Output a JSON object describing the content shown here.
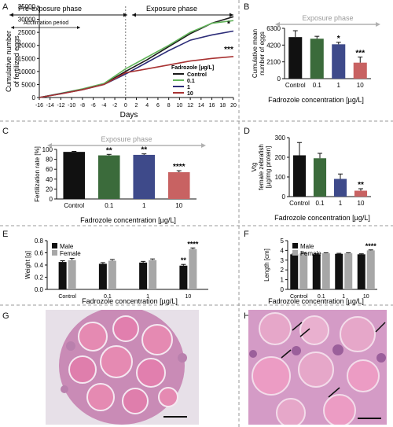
{
  "chart_data": [
    {
      "panel": "A",
      "type": "line",
      "xlabel": "Days",
      "ylabel": "Cumulative number of fertilized eggs",
      "xlim": [
        -16,
        20
      ],
      "ylim": [
        0,
        35000
      ],
      "xticks": [
        -16,
        -14,
        -12,
        -10,
        -8,
        -6,
        -4,
        -2,
        0,
        2,
        4,
        6,
        8,
        10,
        12,
        14,
        16,
        18,
        20
      ],
      "yticks": [
        0,
        5000,
        10000,
        15000,
        20000,
        25000,
        30000,
        35000
      ],
      "phases": {
        "pre": "Pre-exposure phase",
        "exposure": "Exposure phase",
        "acclimation": "Acclimation period"
      },
      "legend_title": "Fadrozole [µg/L]",
      "series": [
        {
          "name": "Control",
          "color": "#1a1a1a",
          "x": [
            -16,
            -12,
            -8,
            -4,
            0,
            4,
            8,
            12,
            16,
            20
          ],
          "y": [
            0,
            1500,
            3200,
            5200,
            10000,
            14500,
            19500,
            24500,
            28500,
            31000
          ]
        },
        {
          "name": "0.1",
          "color": "#62b45a",
          "x": [
            -16,
            -12,
            -8,
            -4,
            0,
            4,
            8,
            12,
            16,
            20
          ],
          "y": [
            0,
            1600,
            3300,
            5400,
            11000,
            15500,
            20000,
            25000,
            28500,
            29500
          ]
        },
        {
          "name": "1",
          "color": "#2c2c78",
          "x": [
            -16,
            -12,
            -8,
            -4,
            0,
            4,
            8,
            12,
            16,
            20
          ],
          "y": [
            0,
            1500,
            3000,
            5000,
            9000,
            13500,
            18000,
            22000,
            24000,
            25500
          ]
        },
        {
          "name": "10",
          "color": "#a83232",
          "x": [
            -16,
            -12,
            -8,
            -4,
            0,
            4,
            8,
            12,
            16,
            20
          ],
          "y": [
            0,
            1400,
            3000,
            5000,
            9500,
            11000,
            12500,
            14000,
            15000,
            15700
          ]
        }
      ],
      "annotations": [
        {
          "text": "*",
          "series": "1"
        },
        {
          "text": "***",
          "series": "10"
        }
      ]
    },
    {
      "panel": "B",
      "type": "bar",
      "subtitle": "Exposure phase",
      "xlabel": "Fadrozole concentration [µg/L]",
      "ylabel": "Cumulative mean number of eggs",
      "categories": [
        "Control",
        "0.1",
        "1",
        "10"
      ],
      "values": [
        5200,
        5000,
        4300,
        2000
      ],
      "errors": [
        800,
        300,
        250,
        700
      ],
      "sig": [
        "",
        "",
        "*",
        "***"
      ],
      "ylim": [
        0,
        6300
      ],
      "yticks": [
        0,
        2100,
        4200,
        6300
      ],
      "colors": [
        "#111111",
        "#3b6b3b",
        "#3e4a8a",
        "#c86262"
      ]
    },
    {
      "panel": "C",
      "type": "bar",
      "subtitle": "Exposure phase",
      "xlabel": "Fadrozole concentration [µg/L]",
      "ylabel": "Fertilization rate [%]",
      "categories": [
        "Control",
        "0.1",
        "1",
        "10"
      ],
      "values": [
        95,
        88,
        89,
        54
      ],
      "errors": [
        1,
        2,
        2,
        3
      ],
      "sig": [
        "",
        "**",
        "**",
        "****"
      ],
      "ylim": [
        0,
        100
      ],
      "yticks": [
        0,
        20,
        40,
        60,
        80,
        100
      ],
      "colors": [
        "#111111",
        "#3b6b3b",
        "#3e4a8a",
        "#c86262"
      ]
    },
    {
      "panel": "D",
      "type": "bar",
      "xlabel": "Fadrozole concentration [µg/L]",
      "ylabel": "Vtg female zebrafish [µg/mg protein]",
      "categories": [
        "Control",
        "0.1",
        "1",
        "10"
      ],
      "values": [
        210,
        195,
        90,
        30
      ],
      "errors": [
        65,
        25,
        25,
        10
      ],
      "sig": [
        "",
        "",
        "",
        "**"
      ],
      "ylim": [
        0,
        300
      ],
      "yticks": [
        0,
        100,
        200,
        300
      ],
      "colors": [
        "#111111",
        "#3b6b3b",
        "#3e4a8a",
        "#c86262"
      ]
    },
    {
      "panel": "E",
      "type": "bar",
      "xlabel": "Fadrozole concentration [µg/L]",
      "ylabel": "Weight [g]",
      "categories": [
        "Control",
        "0.1",
        "1",
        "10"
      ],
      "series": [
        {
          "name": "Male",
          "color": "#111111",
          "values": [
            0.45,
            0.42,
            0.44,
            0.39
          ],
          "errors": [
            0.02,
            0.02,
            0.02,
            0.02
          ],
          "sig": [
            "",
            "",
            "",
            "**"
          ]
        },
        {
          "name": "Female",
          "color": "#a7a7a7",
          "values": [
            0.48,
            0.47,
            0.48,
            0.66
          ],
          "errors": [
            0.03,
            0.02,
            0.02,
            0.02
          ],
          "sig": [
            "",
            "",
            "",
            "****"
          ]
        }
      ],
      "ylim": [
        0,
        0.8
      ],
      "yticks": [
        0.0,
        0.2,
        0.4,
        0.6,
        0.8
      ]
    },
    {
      "panel": "F",
      "type": "bar",
      "xlabel": "Fadrozole concentration [µg/L]",
      "ylabel": "Length [cm]",
      "categories": [
        "Control",
        "0.1",
        "1",
        "10"
      ],
      "series": [
        {
          "name": "Male",
          "color": "#111111",
          "values": [
            3.6,
            3.6,
            3.65,
            3.6
          ],
          "errors": [
            0.05,
            0.05,
            0.05,
            0.05
          ],
          "sig": [
            "",
            "",
            "",
            ""
          ]
        },
        {
          "name": "Female",
          "color": "#a7a7a7",
          "values": [
            3.7,
            3.7,
            3.7,
            4.0
          ],
          "errors": [
            0.05,
            0.05,
            0.05,
            0.05
          ],
          "sig": [
            "",
            "",
            "",
            "****"
          ]
        }
      ],
      "ylim": [
        0,
        5
      ],
      "yticks": [
        0,
        1,
        2,
        3,
        4,
        5
      ]
    }
  ],
  "panel_labels": {
    "A": "A",
    "B": "B",
    "C": "C",
    "D": "D",
    "E": "E",
    "F": "F",
    "G": "G",
    "H": "H"
  },
  "histology": {
    "colors": {
      "bg": "#e9ddea",
      "tissue": "#c98bb6",
      "oocyte": "#e58ab2",
      "ring": "#f3e7f0",
      "dark": "#6d3a73"
    }
  }
}
